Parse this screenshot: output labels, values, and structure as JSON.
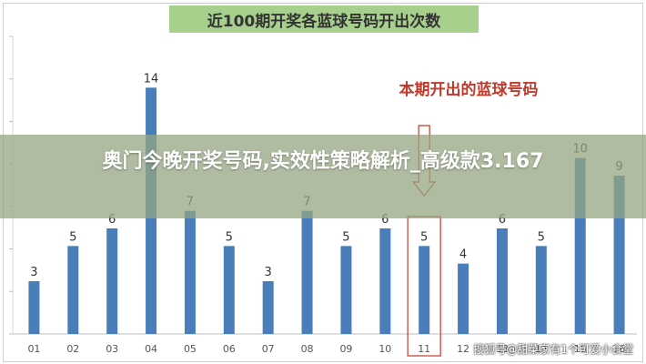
{
  "chart_data": {
    "type": "bar",
    "title": "近100期开奖各蓝球号码开出次数",
    "categories": [
      "01",
      "02",
      "03",
      "04",
      "05",
      "06",
      "07",
      "08",
      "09",
      "10",
      "11",
      "12",
      "13",
      "14",
      "15",
      "16"
    ],
    "values": [
      3,
      5,
      6,
      14,
      7,
      5,
      3,
      7,
      5,
      6,
      5,
      4,
      6,
      5,
      10,
      9
    ],
    "annotation": "本期开出的蓝球号码",
    "highlight_category": "11",
    "ylim": [
      0,
      15
    ],
    "grid": false,
    "bar_color": "#4a7ebb",
    "annotation_color": "#c0392b"
  },
  "overlay_text": "奥门今晚开奖号码,实效性策略解析_高级款3.167",
  "watermark": "搜狐号@甜菜家有1个可爱小食堂"
}
